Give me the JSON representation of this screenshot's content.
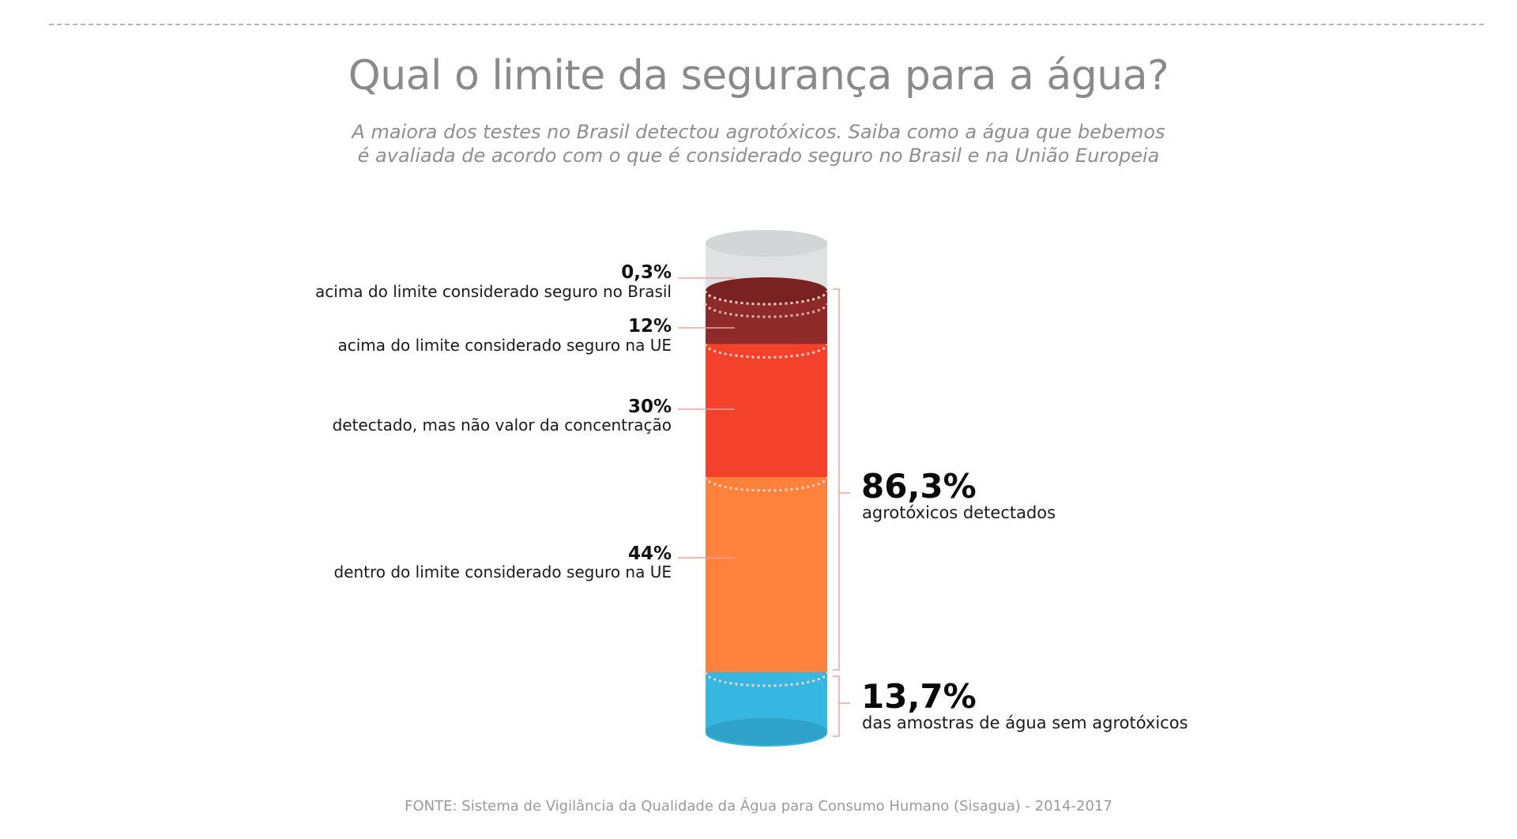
{
  "title": "Qual o limite da segurança para a água?",
  "subtitle": {
    "line1": "A maiora dos testes no Brasil detectou agrotóxicos. Saiba como a água que bebemos",
    "line2": "é avaliada de acordo com o que é considerado seguro no Brasil e na União Europeia"
  },
  "source": "FONTE: Sistema de Vigilância da Qualidade da Água para Consumo Humano (Sisagua) - 2014-2017",
  "colors": {
    "above_brazil": "#dfe1e3",
    "above_ue": "#8e2a2a",
    "detected": "#f4412b",
    "within_ue": "#fe823b",
    "no_pesticides": "#36b7e2",
    "leader": "#f2a0a0"
  },
  "chart_data": {
    "type": "stacked-cylinder",
    "unit": "%",
    "segments": [
      {
        "key": "no_pesticides",
        "value": 13.7,
        "label": "13,7%",
        "description": "das amostras de água sem agrotóxicos",
        "side": "right"
      },
      {
        "key": "within_ue",
        "value": 44,
        "label": "44%",
        "description": "dentro do limite considerado seguro na UE",
        "side": "left"
      },
      {
        "key": "detected",
        "value": 30,
        "label": "30%",
        "description": "detectado, mas não valor da concentração",
        "side": "left"
      },
      {
        "key": "above_ue",
        "value": 12,
        "label": "12%",
        "description": "acima do limite considerado seguro na UE",
        "side": "left"
      },
      {
        "key": "above_brazil",
        "value": 0.3,
        "label": "0,3%",
        "description": "acima do limite considerado seguro no Brasil",
        "side": "left"
      }
    ],
    "groups": [
      {
        "value": 86.3,
        "label": "86,3%",
        "description": "agrotóxicos detectados",
        "includes": [
          "within_ue",
          "detected",
          "above_ue",
          "above_brazil"
        ]
      },
      {
        "value": 13.7,
        "label": "13,7%",
        "description": "das amostras de água sem agrotóxicos",
        "includes": [
          "no_pesticides"
        ]
      }
    ]
  }
}
